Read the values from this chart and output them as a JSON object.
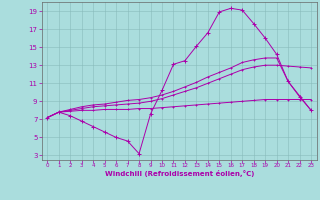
{
  "xlabel": "Windchill (Refroidissement éolien,°C)",
  "bg_color": "#aadddd",
  "line_color": "#aa00aa",
  "grid_color": "#88bbbb",
  "xlim": [
    -0.5,
    23.5
  ],
  "ylim": [
    2.5,
    20.0
  ],
  "xticks": [
    0,
    1,
    2,
    3,
    4,
    5,
    6,
    7,
    8,
    9,
    10,
    11,
    12,
    13,
    14,
    15,
    16,
    17,
    18,
    19,
    20,
    21,
    22,
    23
  ],
  "yticks": [
    3,
    5,
    7,
    9,
    11,
    13,
    15,
    17,
    19
  ],
  "line1_y": [
    7.2,
    7.8,
    7.4,
    6.8,
    6.2,
    5.6,
    5.0,
    4.6,
    3.2,
    7.6,
    10.2,
    13.1,
    13.5,
    15.1,
    16.6,
    18.9,
    19.3,
    19.1,
    17.6,
    16.0,
    14.2,
    11.2,
    9.5,
    8.0
  ],
  "line2_y": [
    7.2,
    7.8,
    7.9,
    8.0,
    8.0,
    8.1,
    8.1,
    8.1,
    8.2,
    8.2,
    8.3,
    8.4,
    8.5,
    8.6,
    8.7,
    8.8,
    8.9,
    9.0,
    9.1,
    9.2,
    9.2,
    9.2,
    9.2,
    9.2
  ],
  "line3_y": [
    7.2,
    7.8,
    8.0,
    8.2,
    8.4,
    8.5,
    8.6,
    8.7,
    8.8,
    9.0,
    9.3,
    9.7,
    10.1,
    10.5,
    11.0,
    11.5,
    12.0,
    12.5,
    12.8,
    13.0,
    13.0,
    12.9,
    12.8,
    12.7
  ],
  "line4_y": [
    7.2,
    7.8,
    8.1,
    8.4,
    8.6,
    8.7,
    8.9,
    9.1,
    9.2,
    9.4,
    9.7,
    10.1,
    10.6,
    11.1,
    11.7,
    12.2,
    12.7,
    13.3,
    13.6,
    13.8,
    13.8,
    11.2,
    9.6,
    8.0
  ]
}
